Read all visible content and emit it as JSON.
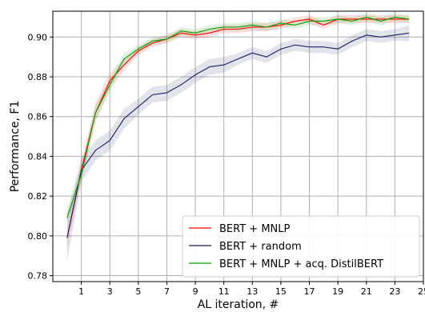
{
  "chart_data": {
    "type": "line",
    "title": "",
    "xlabel": "AL iteration, #",
    "ylabel": "Performance, F1",
    "xlim": [
      -1,
      25
    ],
    "ylim": [
      0.777,
      0.913
    ],
    "xticks": [
      1,
      3,
      5,
      7,
      9,
      11,
      13,
      15,
      17,
      19,
      21,
      23,
      25
    ],
    "yticks": [
      0.78,
      0.8,
      0.82,
      0.84,
      0.86,
      0.88,
      0.9
    ],
    "ytick_labels": [
      "0.78",
      "0.80",
      "0.82",
      "0.84",
      "0.86",
      "0.88",
      "0.90"
    ],
    "grid": true,
    "legend_position": "lower-right",
    "x": [
      0,
      1,
      2,
      3,
      4,
      5,
      6,
      7,
      8,
      9,
      10,
      11,
      12,
      13,
      14,
      15,
      16,
      17,
      18,
      19,
      20,
      21,
      22,
      23,
      24
    ],
    "series": [
      {
        "name": "BERT + MNLP",
        "color": "#ff0000",
        "values": [
          0.799,
          0.833,
          0.862,
          0.878,
          0.886,
          0.893,
          0.897,
          0.899,
          0.902,
          0.901,
          0.902,
          0.904,
          0.904,
          0.905,
          0.905,
          0.906,
          0.908,
          0.909,
          0.906,
          0.909,
          0.909,
          0.909,
          0.909,
          0.909,
          0.909
        ],
        "band": [
          0.005,
          0.005,
          0.005,
          0.004,
          0.003,
          0.002,
          0.002,
          0.002,
          0.002,
          0.002,
          0.002,
          0.002,
          0.002,
          0.002,
          0.002,
          0.002,
          0.002,
          0.002,
          0.002,
          0.002,
          0.002,
          0.002,
          0.002,
          0.002,
          0.002
        ]
      },
      {
        "name": "BERT + random",
        "color": "#1a1a66",
        "values": [
          0.799,
          0.833,
          0.843,
          0.848,
          0.859,
          0.865,
          0.871,
          0.872,
          0.876,
          0.881,
          0.885,
          0.886,
          0.889,
          0.892,
          0.89,
          0.894,
          0.896,
          0.895,
          0.895,
          0.894,
          0.898,
          0.901,
          0.9,
          0.901,
          0.902
        ],
        "band": [
          0.012,
          0.006,
          0.005,
          0.005,
          0.005,
          0.004,
          0.004,
          0.004,
          0.004,
          0.004,
          0.004,
          0.004,
          0.003,
          0.003,
          0.003,
          0.003,
          0.003,
          0.003,
          0.003,
          0.003,
          0.003,
          0.003,
          0.003,
          0.003,
          0.004
        ]
      },
      {
        "name": "BERT + MNLP + acq. DistilBERT",
        "color": "#00a000",
        "values": [
          0.809,
          0.831,
          0.862,
          0.876,
          0.889,
          0.894,
          0.898,
          0.899,
          0.903,
          0.902,
          0.904,
          0.905,
          0.905,
          0.906,
          0.905,
          0.907,
          0.906,
          0.908,
          0.908,
          0.909,
          0.908,
          0.91,
          0.908,
          0.91,
          0.909
        ],
        "band": [
          0.004,
          0.004,
          0.004,
          0.003,
          0.003,
          0.002,
          0.002,
          0.002,
          0.002,
          0.002,
          0.002,
          0.002,
          0.002,
          0.002,
          0.002,
          0.002,
          0.002,
          0.002,
          0.002,
          0.002,
          0.002,
          0.002,
          0.002,
          0.002,
          0.002
        ]
      }
    ]
  }
}
